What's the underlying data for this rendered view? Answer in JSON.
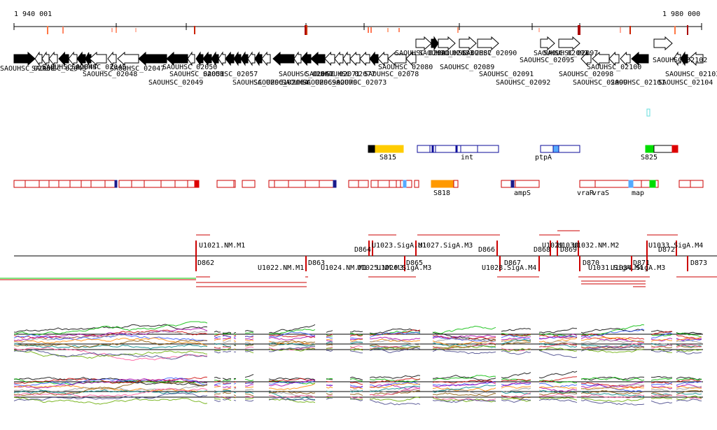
{
  "ruler": {
    "start_label": "1 940 001",
    "end_label": "1 980 000",
    "start": 1940001,
    "end": 1980000
  },
  "colors": {
    "gene_fill": "#000000",
    "feature_stroke": "#cc0000",
    "region_stroke": "#0b0b9a",
    "orange": "#ff9900",
    "gold": "#ffcc00",
    "green": "#00dd00",
    "red": "#dd0000",
    "blue_marker": "#1a1a8c",
    "light_blue": "#55aaff",
    "cyan": "#66dddd"
  },
  "gene_labels": [
    "SAOUHSC_02038",
    "SAOUHSC_02043",
    "SAOUHSC_02044",
    "SAOUHSC_02045",
    "SAOUHSC_02047",
    "SAOUHSC_02048",
    "SAOUHSC_02049",
    "SAOUHSC_02050",
    "SAOUHSC_02051",
    "SAOUHSC_02057",
    "SAOUHSC_02061",
    "SAOUHSC_02064",
    "SAOUHSC_02067",
    "SAOUHSC_02069",
    "SAOUHSC_02070",
    "SAOUHSC_02071",
    "SAOUHSC_02073",
    "SAOUHSC_02077",
    "SAOUHSC_02078",
    "SAOUHSC_02080",
    "SAOUHSC_02081",
    "SAOUHSC_02083",
    "SAOUHSC_02087",
    "SAOUHSC_02089",
    "SAOUHSC_02090",
    "SAOUHSC_02091",
    "SAOUHSC_02092",
    "SAOUHSC_02093",
    "SAOUHSC_02095",
    "SAOUHSC_02097",
    "SAOUHSC_02098",
    "SAOUHSC_02099",
    "SAOUHSC_02100",
    "SAOUHSC_02101",
    "SAOUHSC_02102",
    "SAOUHSC_02103",
    "SAOUHSC_02104"
  ],
  "region_labels": [
    "S815",
    "int",
    "ptpA",
    "S825"
  ],
  "feature_labels": [
    "S818",
    "ampS",
    "vraR",
    "vraS",
    "map"
  ],
  "peak_labels_above": [
    "U1021.NM.M1",
    "D864",
    "U1023.SigA.M1",
    "U1027.SigA.M3",
    "D866",
    "D868",
    "U1029",
    "U1030",
    "D869",
    "U1032.NM.M2",
    "U1033.SigA.M4",
    "D872"
  ],
  "peak_labels_below": [
    "D862",
    "U1022.NM.M1",
    "D863",
    "U1024.NM.M1",
    "U1025.NM.M3",
    "U1026.SigA.M3",
    "D865",
    "D867",
    "U1028.SigA.M4",
    "D870",
    "U1031.SigA.M4",
    "D871",
    "U1034.SigA.M3",
    "D873"
  ]
}
